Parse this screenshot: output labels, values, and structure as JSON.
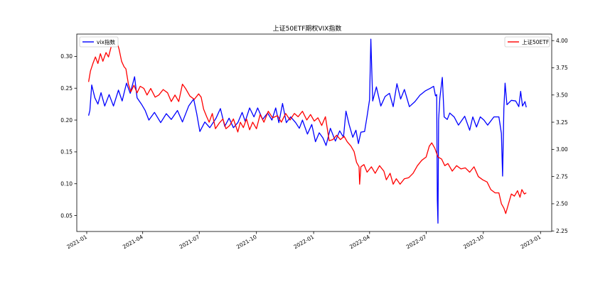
{
  "chart_data": {
    "type": "line",
    "title": "上证50ETF期权VIX指数",
    "x_ticks": [
      "2021-01",
      "2021-04",
      "2021-07",
      "2021-10",
      "2022-01",
      "2022-04",
      "2022-07",
      "2022-10",
      "2023-01"
    ],
    "x_range": [
      "2020-12-16",
      "2023-01-19"
    ],
    "left_axis": {
      "ticks": [
        0.05,
        0.1,
        0.15,
        0.2,
        0.25,
        0.3
      ],
      "tick_labels": [
        "0.05",
        "0.10",
        "0.15",
        "0.20",
        "0.25",
        "0.30"
      ],
      "ylim": [
        0.025,
        0.335
      ]
    },
    "right_axis": {
      "ticks": [
        2.25,
        2.5,
        2.75,
        3.0,
        3.25,
        3.5,
        3.75,
        4.0
      ],
      "tick_labels": [
        "2.25",
        "2.50",
        "2.75",
        "3.00",
        "3.25",
        "3.50",
        "3.75",
        "4.00"
      ],
      "ylim": [
        2.245,
        4.06
      ]
    },
    "legend_left": {
      "label": "vix指数",
      "color": "#0000ff",
      "position": "upper-left"
    },
    "legend_right": {
      "label": "上证50ETF",
      "color": "#ff0000",
      "position": "upper-right"
    },
    "series": [
      {
        "name": "vix指数",
        "axis": "left",
        "color": "#0000ff",
        "points": [
          [
            "2021-01-04",
            0.207
          ],
          [
            "2021-01-06",
            0.215
          ],
          [
            "2021-01-09",
            0.255
          ],
          [
            "2021-01-14",
            0.235
          ],
          [
            "2021-01-19",
            0.225
          ],
          [
            "2021-01-24",
            0.243
          ],
          [
            "2021-01-30",
            0.222
          ],
          [
            "2021-02-06",
            0.24
          ],
          [
            "2021-02-13",
            0.222
          ],
          [
            "2021-02-21",
            0.247
          ],
          [
            "2021-02-27",
            0.23
          ],
          [
            "2021-03-06",
            0.258
          ],
          [
            "2021-03-12",
            0.242
          ],
          [
            "2021-03-19",
            0.268
          ],
          [
            "2021-03-23",
            0.235
          ],
          [
            "2021-03-30",
            0.225
          ],
          [
            "2021-04-05",
            0.215
          ],
          [
            "2021-04-11",
            0.2
          ],
          [
            "2021-04-20",
            0.212
          ],
          [
            "2021-04-30",
            0.196
          ],
          [
            "2021-05-09",
            0.21
          ],
          [
            "2021-05-17",
            0.201
          ],
          [
            "2021-05-27",
            0.215
          ],
          [
            "2021-06-04",
            0.197
          ],
          [
            "2021-06-14",
            0.222
          ],
          [
            "2021-06-22",
            0.233
          ],
          [
            "2021-06-27",
            0.21
          ],
          [
            "2021-07-02",
            0.182
          ],
          [
            "2021-07-10",
            0.197
          ],
          [
            "2021-07-18",
            0.188
          ],
          [
            "2021-07-28",
            0.203
          ],
          [
            "2021-08-04",
            0.218
          ],
          [
            "2021-08-11",
            0.19
          ],
          [
            "2021-08-18",
            0.203
          ],
          [
            "2021-08-25",
            0.188
          ],
          [
            "2021-09-01",
            0.196
          ],
          [
            "2021-09-08",
            0.212
          ],
          [
            "2021-09-13",
            0.198
          ],
          [
            "2021-09-20",
            0.219
          ],
          [
            "2021-09-27",
            0.205
          ],
          [
            "2021-10-03",
            0.219
          ],
          [
            "2021-10-11",
            0.201
          ],
          [
            "2021-10-19",
            0.211
          ],
          [
            "2021-10-26",
            0.2
          ],
          [
            "2021-11-01",
            0.219
          ],
          [
            "2021-11-06",
            0.196
          ],
          [
            "2021-11-12",
            0.226
          ],
          [
            "2021-11-18",
            0.196
          ],
          [
            "2021-11-25",
            0.205
          ],
          [
            "2021-12-03",
            0.196
          ],
          [
            "2021-12-09",
            0.187
          ],
          [
            "2021-12-14",
            0.2
          ],
          [
            "2021-12-22",
            0.178
          ],
          [
            "2021-12-29",
            0.193
          ],
          [
            "2022-01-04",
            0.166
          ],
          [
            "2022-01-10",
            0.18
          ],
          [
            "2022-01-16",
            0.172
          ],
          [
            "2022-01-21",
            0.16
          ],
          [
            "2022-01-28",
            0.187
          ],
          [
            "2022-02-05",
            0.167
          ],
          [
            "2022-02-12",
            0.183
          ],
          [
            "2022-02-18",
            0.173
          ],
          [
            "2022-02-22",
            0.214
          ],
          [
            "2022-02-27",
            0.193
          ],
          [
            "2022-03-05",
            0.173
          ],
          [
            "2022-03-10",
            0.184
          ],
          [
            "2022-03-14",
            0.163
          ],
          [
            "2022-03-18",
            0.181
          ],
          [
            "2022-03-24",
            0.182
          ],
          [
            "2022-03-28",
            0.206
          ],
          [
            "2022-04-01",
            0.232
          ],
          [
            "2022-04-03",
            0.327
          ],
          [
            "2022-04-06",
            0.23
          ],
          [
            "2022-04-12",
            0.252
          ],
          [
            "2022-04-19",
            0.222
          ],
          [
            "2022-04-26",
            0.237
          ],
          [
            "2022-05-03",
            0.242
          ],
          [
            "2022-05-09",
            0.221
          ],
          [
            "2022-05-15",
            0.257
          ],
          [
            "2022-05-21",
            0.233
          ],
          [
            "2022-05-27",
            0.248
          ],
          [
            "2022-06-04",
            0.221
          ],
          [
            "2022-06-13",
            0.229
          ],
          [
            "2022-06-21",
            0.239
          ],
          [
            "2022-06-30",
            0.246
          ],
          [
            "2022-07-08",
            0.25
          ],
          [
            "2022-07-13",
            0.253
          ],
          [
            "2022-07-16",
            0.238
          ],
          [
            "2022-07-18",
            0.24
          ],
          [
            "2022-07-19",
            0.075
          ],
          [
            "2022-07-20",
            0.038
          ],
          [
            "2022-07-21",
            0.2
          ],
          [
            "2022-07-23",
            0.234
          ],
          [
            "2022-07-27",
            0.267
          ],
          [
            "2022-07-30",
            0.205
          ],
          [
            "2022-08-04",
            0.201
          ],
          [
            "2022-08-08",
            0.211
          ],
          [
            "2022-08-15",
            0.205
          ],
          [
            "2022-08-22",
            0.192
          ],
          [
            "2022-09-01",
            0.206
          ],
          [
            "2022-09-09",
            0.184
          ],
          [
            "2022-09-14",
            0.205
          ],
          [
            "2022-09-20",
            0.189
          ],
          [
            "2022-09-26",
            0.205
          ],
          [
            "2022-10-02",
            0.2
          ],
          [
            "2022-10-08",
            0.192
          ],
          [
            "2022-10-18",
            0.205
          ],
          [
            "2022-10-26",
            0.205
          ],
          [
            "2022-10-30",
            0.179
          ],
          [
            "2022-11-01",
            0.112
          ],
          [
            "2022-11-03",
            0.218
          ],
          [
            "2022-11-05",
            0.258
          ],
          [
            "2022-11-08",
            0.224
          ],
          [
            "2022-11-15",
            0.231
          ],
          [
            "2022-11-22",
            0.23
          ],
          [
            "2022-11-27",
            0.221
          ],
          [
            "2022-11-30",
            0.245
          ],
          [
            "2022-12-03",
            0.222
          ],
          [
            "2022-12-07",
            0.229
          ],
          [
            "2022-12-09",
            0.22
          ]
        ]
      },
      {
        "name": "上证50ETF",
        "axis": "right",
        "color": "#ff0000",
        "points": [
          [
            "2021-01-04",
            3.62
          ],
          [
            "2021-01-07",
            3.72
          ],
          [
            "2021-01-11",
            3.79
          ],
          [
            "2021-01-15",
            3.85
          ],
          [
            "2021-01-19",
            3.79
          ],
          [
            "2021-01-23",
            3.88
          ],
          [
            "2021-01-27",
            3.81
          ],
          [
            "2021-02-01",
            3.89
          ],
          [
            "2021-02-05",
            3.85
          ],
          [
            "2021-02-10",
            3.96
          ],
          [
            "2021-02-14",
            4.0
          ],
          [
            "2021-02-18",
            4.0
          ],
          [
            "2021-02-22",
            3.92
          ],
          [
            "2021-02-26",
            3.81
          ],
          [
            "2021-03-02",
            3.76
          ],
          [
            "2021-03-05",
            3.74
          ],
          [
            "2021-03-09",
            3.6
          ],
          [
            "2021-03-13",
            3.53
          ],
          [
            "2021-03-18",
            3.59
          ],
          [
            "2021-03-23",
            3.52
          ],
          [
            "2021-03-28",
            3.58
          ],
          [
            "2021-04-03",
            3.56
          ],
          [
            "2021-04-08",
            3.5
          ],
          [
            "2021-04-14",
            3.56
          ],
          [
            "2021-04-21",
            3.48
          ],
          [
            "2021-04-27",
            3.5
          ],
          [
            "2021-05-04",
            3.55
          ],
          [
            "2021-05-11",
            3.52
          ],
          [
            "2021-05-17",
            3.44
          ],
          [
            "2021-05-23",
            3.5
          ],
          [
            "2021-05-29",
            3.44
          ],
          [
            "2021-06-04",
            3.6
          ],
          [
            "2021-06-09",
            3.56
          ],
          [
            "2021-06-16",
            3.49
          ],
          [
            "2021-06-23",
            3.46
          ],
          [
            "2021-06-30",
            3.51
          ],
          [
            "2021-07-04",
            3.48
          ],
          [
            "2021-07-08",
            3.37
          ],
          [
            "2021-07-13",
            3.3
          ],
          [
            "2021-07-17",
            3.25
          ],
          [
            "2021-07-22",
            3.33
          ],
          [
            "2021-07-27",
            3.19
          ],
          [
            "2021-08-02",
            3.24
          ],
          [
            "2021-08-08",
            3.28
          ],
          [
            "2021-08-13",
            3.19
          ],
          [
            "2021-08-19",
            3.22
          ],
          [
            "2021-08-25",
            3.28
          ],
          [
            "2021-09-01",
            3.16
          ],
          [
            "2021-09-05",
            3.25
          ],
          [
            "2021-09-10",
            3.2
          ],
          [
            "2021-09-15",
            3.28
          ],
          [
            "2021-09-20",
            3.18
          ],
          [
            "2021-09-25",
            3.25
          ],
          [
            "2021-10-01",
            3.19
          ],
          [
            "2021-10-07",
            3.32
          ],
          [
            "2021-10-13",
            3.25
          ],
          [
            "2021-10-20",
            3.35
          ],
          [
            "2021-10-27",
            3.29
          ],
          [
            "2021-11-04",
            3.31
          ],
          [
            "2021-11-10",
            3.25
          ],
          [
            "2021-11-17",
            3.33
          ],
          [
            "2021-11-24",
            3.27
          ],
          [
            "2021-12-01",
            3.33
          ],
          [
            "2021-12-07",
            3.3
          ],
          [
            "2021-12-14",
            3.35
          ],
          [
            "2021-12-21",
            3.27
          ],
          [
            "2021-12-27",
            3.32
          ],
          [
            "2022-01-02",
            3.26
          ],
          [
            "2022-01-08",
            3.29
          ],
          [
            "2022-01-14",
            3.22
          ],
          [
            "2022-01-20",
            3.3
          ],
          [
            "2022-01-26",
            3.08
          ],
          [
            "2022-02-01",
            3.09
          ],
          [
            "2022-02-07",
            3.13
          ],
          [
            "2022-02-13",
            3.09
          ],
          [
            "2022-02-19",
            3.12
          ],
          [
            "2022-02-24",
            3.07
          ],
          [
            "2022-03-02",
            3.03
          ],
          [
            "2022-03-07",
            2.98
          ],
          [
            "2022-03-11",
            2.88
          ],
          [
            "2022-03-15",
            2.84
          ],
          [
            "2022-03-16",
            2.68
          ],
          [
            "2022-03-18",
            2.84
          ],
          [
            "2022-03-23",
            2.86
          ],
          [
            "2022-03-28",
            2.79
          ],
          [
            "2022-04-04",
            2.84
          ],
          [
            "2022-04-10",
            2.78
          ],
          [
            "2022-04-17",
            2.85
          ],
          [
            "2022-04-24",
            2.8
          ],
          [
            "2022-04-28",
            2.72
          ],
          [
            "2022-05-04",
            2.78
          ],
          [
            "2022-05-09",
            2.68
          ],
          [
            "2022-05-14",
            2.73
          ],
          [
            "2022-05-20",
            2.68
          ],
          [
            "2022-05-27",
            2.73
          ],
          [
            "2022-06-03",
            2.74
          ],
          [
            "2022-06-10",
            2.78
          ],
          [
            "2022-06-17",
            2.85
          ],
          [
            "2022-06-24",
            2.9
          ],
          [
            "2022-07-01",
            2.93
          ],
          [
            "2022-07-06",
            3.03
          ],
          [
            "2022-07-10",
            3.06
          ],
          [
            "2022-07-15",
            3.01
          ],
          [
            "2022-07-20",
            2.93
          ],
          [
            "2022-07-26",
            2.91
          ],
          [
            "2022-07-31",
            2.85
          ],
          [
            "2022-08-05",
            2.87
          ],
          [
            "2022-08-12",
            2.8
          ],
          [
            "2022-08-19",
            2.85
          ],
          [
            "2022-08-26",
            2.82
          ],
          [
            "2022-09-02",
            2.83
          ],
          [
            "2022-09-09",
            2.79
          ],
          [
            "2022-09-16",
            2.84
          ],
          [
            "2022-09-23",
            2.75
          ],
          [
            "2022-09-30",
            2.72
          ],
          [
            "2022-10-07",
            2.7
          ],
          [
            "2022-10-13",
            2.63
          ],
          [
            "2022-10-20",
            2.6
          ],
          [
            "2022-10-26",
            2.6
          ],
          [
            "2022-10-30",
            2.5
          ],
          [
            "2022-11-03",
            2.46
          ],
          [
            "2022-11-06",
            2.41
          ],
          [
            "2022-11-10",
            2.49
          ],
          [
            "2022-11-15",
            2.59
          ],
          [
            "2022-11-20",
            2.57
          ],
          [
            "2022-11-25",
            2.62
          ],
          [
            "2022-11-29",
            2.56
          ],
          [
            "2022-12-02",
            2.63
          ],
          [
            "2022-12-06",
            2.59
          ],
          [
            "2022-12-09",
            2.6
          ]
        ]
      }
    ]
  }
}
